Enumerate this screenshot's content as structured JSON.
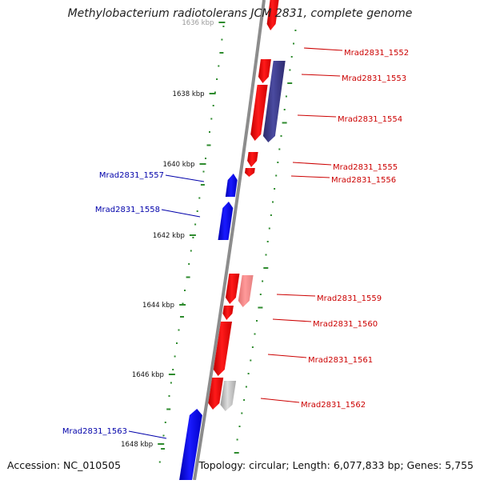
{
  "title": "Methylobacterium radiotolerans JCM 2831, complete genome",
  "accession": "Accession: NC_010505",
  "summary": "Topology: circular; Length: 6,077,833 bp; Genes: 5,755",
  "ruler": {
    "labels": [
      "1636 kbp",
      "1638 kbp",
      "1640 kbp",
      "1642 kbp",
      "1644 kbp",
      "1646 kbp",
      "1648 kbp"
    ]
  },
  "colors": {
    "forward": "#ff0000",
    "reverse": "#0000ee",
    "forward_label": "#cc0000",
    "reverse_label": "#0000aa",
    "backbone": "#8c8c8c",
    "gc_tick": "#2e8b2e"
  },
  "genes": [
    {
      "name": "Mrad2831_1552",
      "strand": "forward"
    },
    {
      "name": "Mrad2831_1553",
      "strand": "forward"
    },
    {
      "name": "Mrad2831_1554",
      "strand": "forward"
    },
    {
      "name": "Mrad2831_1555",
      "strand": "forward"
    },
    {
      "name": "Mrad2831_1556",
      "strand": "forward"
    },
    {
      "name": "Mrad2831_1557",
      "strand": "reverse"
    },
    {
      "name": "Mrad2831_1558",
      "strand": "reverse"
    },
    {
      "name": "Mrad2831_1559",
      "strand": "forward"
    },
    {
      "name": "Mrad2831_1560",
      "strand": "forward"
    },
    {
      "name": "Mrad2831_1561",
      "strand": "forward"
    },
    {
      "name": "Mrad2831_1562",
      "strand": "forward"
    },
    {
      "name": "Mrad2831_1563",
      "strand": "reverse"
    }
  ]
}
